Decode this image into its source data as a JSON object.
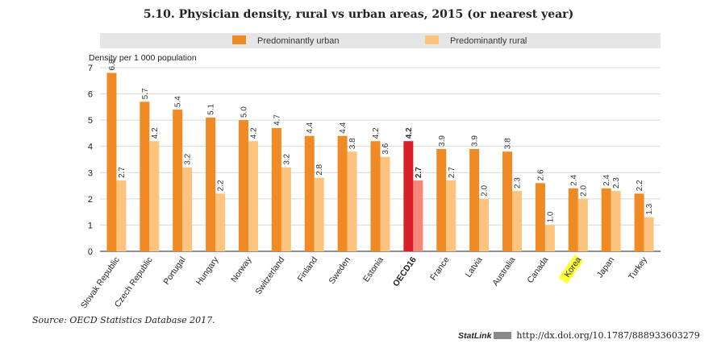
{
  "chart_data": {
    "type": "bar",
    "title": "5.10. Physician density, rural vs urban areas, 2015 (or nearest year)",
    "ylabel": "Density per 1 000 population",
    "ylim": [
      0,
      7
    ],
    "yticks": [
      0,
      1,
      2,
      3,
      4,
      5,
      6,
      7
    ],
    "grid": true,
    "legend_position": "top",
    "categories": [
      "Slovak Republic",
      "Czech Republic",
      "Portugal",
      "Hungary",
      "Norway",
      "Switzerland",
      "Finland",
      "Sweden",
      "Estonia",
      "OECD16",
      "France",
      "Latvia",
      "Australia",
      "Canada",
      "Korea",
      "Japan",
      "Turkey"
    ],
    "highlight_category": "OECD16",
    "label_highlight_category": "Korea",
    "series": [
      {
        "name": "Predominantly urban",
        "color": "#f08a24",
        "highlight_color": "#d7202b",
        "values": [
          6.8,
          5.7,
          5.4,
          5.1,
          5.0,
          4.7,
          4.4,
          4.4,
          4.2,
          4.2,
          3.9,
          3.9,
          3.8,
          2.6,
          2.4,
          2.4,
          2.2
        ]
      },
      {
        "name": "Predominantly rural",
        "color": "#fdc47f",
        "highlight_color": "#f2877a",
        "values": [
          2.7,
          4.2,
          3.2,
          2.2,
          4.2,
          3.2,
          2.8,
          3.8,
          3.6,
          2.7,
          2.7,
          2.0,
          2.3,
          1.0,
          2.0,
          2.3,
          1.3
        ]
      }
    ]
  },
  "footer": {
    "source": "Source: OECD Statistics Database 2017.",
    "statlink_label": "StatLink",
    "statlink_url": "http://dx.doi.org/10.1787/888933603279"
  }
}
